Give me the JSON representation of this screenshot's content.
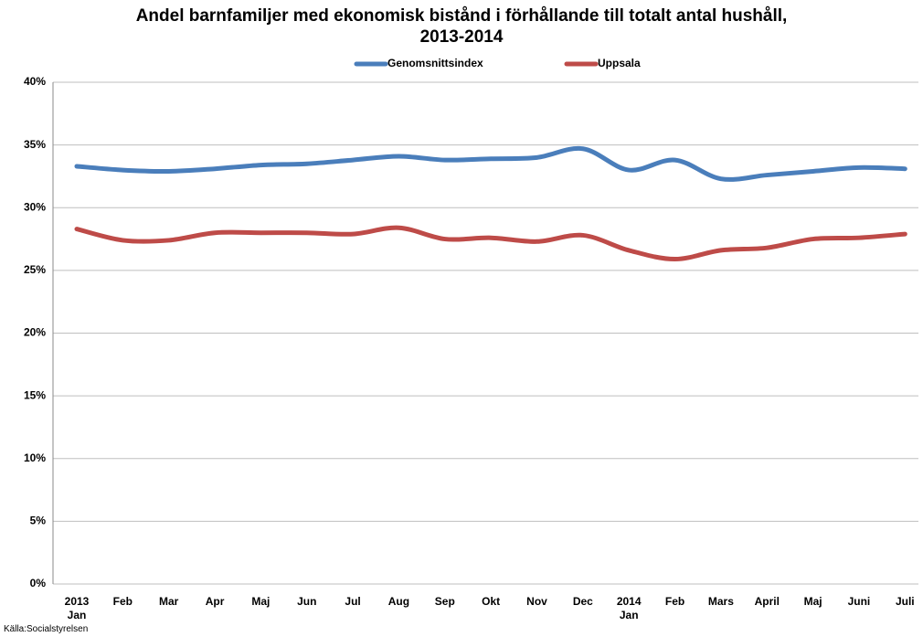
{
  "chart_data": {
    "type": "line",
    "title": "Andel barnfamiljer med ekonomisk bistånd i förhållande till totalt antal hushåll,\n2013-2014",
    "categories": [
      "2013\nJan",
      "Feb",
      "Mar",
      "Apr",
      "Maj",
      "Jun",
      "Jul",
      "Aug",
      "Sep",
      "Okt",
      "Nov",
      "Dec",
      "2014\nJan",
      "Feb",
      "Mars",
      "April",
      "Maj",
      "Juni",
      "Juli"
    ],
    "series": [
      {
        "name": "Genomsnittsindex",
        "color": "#4a7ebb",
        "values": [
          33.3,
          33.0,
          32.9,
          33.1,
          33.4,
          33.5,
          33.8,
          34.1,
          33.8,
          33.9,
          34.0,
          34.7,
          33.0,
          33.8,
          32.3,
          32.6,
          32.9,
          33.2,
          33.1
        ]
      },
      {
        "name": "Uppsala",
        "color": "#be4b48",
        "values": [
          28.3,
          27.4,
          27.4,
          28.0,
          28.0,
          28.0,
          27.9,
          28.4,
          27.5,
          27.6,
          27.3,
          27.8,
          26.6,
          25.9,
          26.6,
          26.8,
          27.5,
          27.6,
          27.9
        ]
      }
    ],
    "ylim": [
      0,
      40
    ],
    "yticks": [
      {
        "value": 0,
        "label": "0%"
      },
      {
        "value": 5,
        "label": "5%"
      },
      {
        "value": 10,
        "label": "10%"
      },
      {
        "value": 15,
        "label": "15%"
      },
      {
        "value": 20,
        "label": "20%"
      },
      {
        "value": 25,
        "label": "25%"
      },
      {
        "value": 30,
        "label": "30%"
      },
      {
        "value": 35,
        "label": "35%"
      },
      {
        "value": 40,
        "label": "40%"
      }
    ],
    "grid": true,
    "legend": "top",
    "source": "Källa:Socialstyrelsen"
  }
}
